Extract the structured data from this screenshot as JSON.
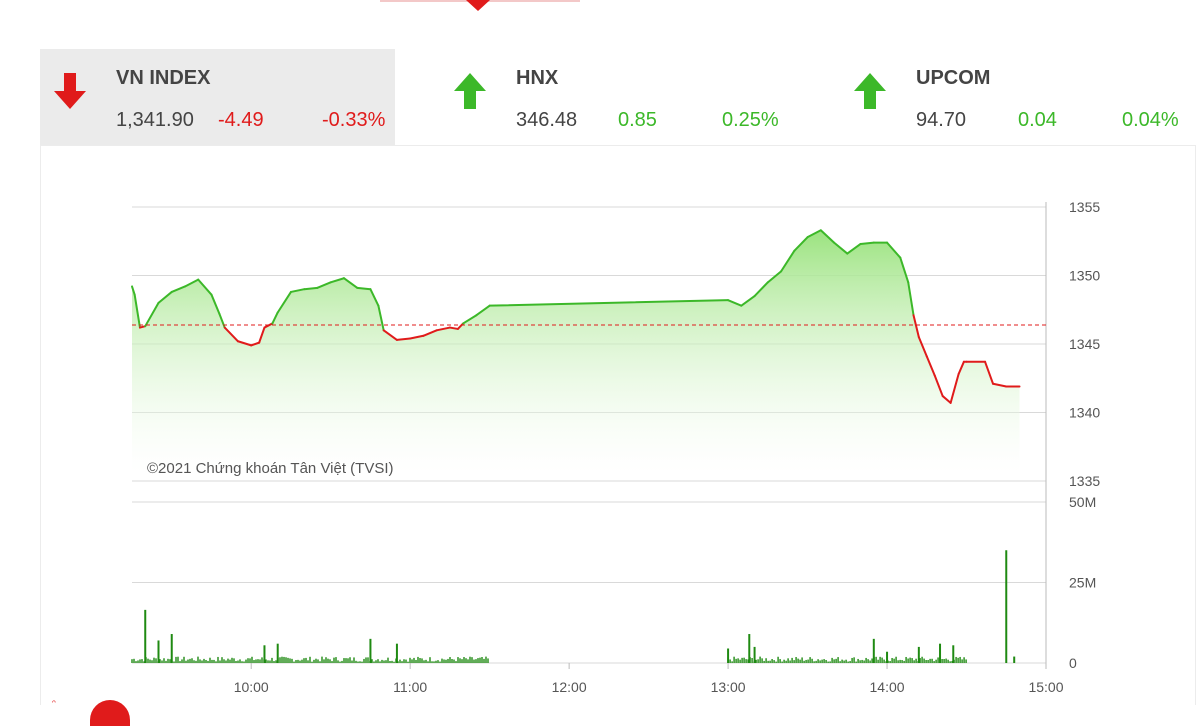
{
  "colors": {
    "up": "#3cb829",
    "down": "#e01b1b",
    "fill_top": "#9be37f",
    "fill_bottom": "#ffffff",
    "volume": "#1f8a12",
    "reference": "#e01b1b",
    "grid": "#d9d9d9"
  },
  "indices": [
    {
      "name": "VN INDEX",
      "value": "1,341.90",
      "change": "-4.49",
      "pct": "-0.33%",
      "direction": "down",
      "active": true
    },
    {
      "name": "HNX",
      "value": "346.48",
      "change": "0.85",
      "pct": "0.25%",
      "direction": "up",
      "active": false
    },
    {
      "name": "UPCOM",
      "value": "94.70",
      "change": "0.04",
      "pct": "0.04%",
      "direction": "up",
      "active": false
    }
  ],
  "chart_data": {
    "type": "line",
    "title": "",
    "watermark": "©2021 Chứng khoán Tân Việt (TVSI)",
    "reference": 1346.39,
    "ylim": [
      1335,
      1355
    ],
    "y_ticks": [
      1355,
      1350,
      1345,
      1340,
      1335
    ],
    "x_ticks": [
      "10:00",
      "11:00",
      "12:00",
      "13:00",
      "14:00",
      "15:00"
    ],
    "grid": true,
    "legend": "none",
    "price_series": {
      "name": "",
      "points": [
        [
          "09:15",
          1349.2
        ],
        [
          "09:16",
          1348.6
        ],
        [
          "09:18",
          1346.2
        ],
        [
          "09:20",
          1346.3
        ],
        [
          "09:25",
          1348.0
        ],
        [
          "09:30",
          1348.8
        ],
        [
          "09:35",
          1349.2
        ],
        [
          "09:40",
          1349.7
        ],
        [
          "09:45",
          1348.6
        ],
        [
          "09:48",
          1347.2
        ],
        [
          "09:50",
          1346.2
        ],
        [
          "09:55",
          1345.2
        ],
        [
          "10:00",
          1344.9
        ],
        [
          "10:03",
          1345.1
        ],
        [
          "10:05",
          1346.2
        ],
        [
          "10:08",
          1346.5
        ],
        [
          "10:10",
          1347.3
        ],
        [
          "10:15",
          1348.8
        ],
        [
          "10:20",
          1349.0
        ],
        [
          "10:25",
          1349.1
        ],
        [
          "10:30",
          1349.5
        ],
        [
          "10:35",
          1349.8
        ],
        [
          "10:40",
          1349.1
        ],
        [
          "10:45",
          1349.0
        ],
        [
          "10:48",
          1347.8
        ],
        [
          "10:50",
          1346.0
        ],
        [
          "10:55",
          1345.3
        ],
        [
          "11:00",
          1345.4
        ],
        [
          "11:05",
          1345.6
        ],
        [
          "11:10",
          1346.0
        ],
        [
          "11:15",
          1346.2
        ],
        [
          "11:18",
          1346.1
        ],
        [
          "11:20",
          1346.5
        ],
        [
          "11:25",
          1347.1
        ],
        [
          "11:30",
          1347.8
        ],
        [
          "13:00",
          1348.2
        ],
        [
          "13:05",
          1347.8
        ],
        [
          "13:10",
          1348.5
        ],
        [
          "13:15",
          1349.5
        ],
        [
          "13:20",
          1350.3
        ],
        [
          "13:25",
          1351.8
        ],
        [
          "13:30",
          1352.8
        ],
        [
          "13:35",
          1353.3
        ],
        [
          "13:40",
          1352.4
        ],
        [
          "13:45",
          1351.6
        ],
        [
          "13:50",
          1352.3
        ],
        [
          "13:55",
          1352.4
        ],
        [
          "14:00",
          1352.4
        ],
        [
          "14:05",
          1351.3
        ],
        [
          "14:08",
          1349.5
        ],
        [
          "14:10",
          1347.1
        ],
        [
          "14:12",
          1345.5
        ],
        [
          "14:15",
          1344.1
        ],
        [
          "14:18",
          1342.7
        ],
        [
          "14:21",
          1341.2
        ],
        [
          "14:24",
          1340.7
        ],
        [
          "14:27",
          1342.8
        ],
        [
          "14:29",
          1343.7
        ],
        [
          "14:30",
          1343.7
        ],
        [
          "14:37",
          1343.7
        ],
        [
          "14:40",
          1342.1
        ],
        [
          "14:45",
          1341.9
        ],
        [
          "14:50",
          1341.9
        ]
      ]
    },
    "volume_series": {
      "name": "",
      "ylim": [
        0,
        50
      ],
      "y_ticks_labels": [
        "50M",
        "25M",
        "0"
      ],
      "y_ticks_values": [
        50,
        25,
        0
      ],
      "spikes": [
        [
          "09:20",
          16.5
        ],
        [
          "09:25",
          7.0
        ],
        [
          "09:30",
          9.0
        ],
        [
          "10:05",
          5.5
        ],
        [
          "10:10",
          6.0
        ],
        [
          "10:45",
          7.5
        ],
        [
          "10:55",
          6.0
        ],
        [
          "13:00",
          4.5
        ],
        [
          "13:08",
          9.0
        ],
        [
          "13:10",
          5.0
        ],
        [
          "13:55",
          7.5
        ],
        [
          "14:00",
          3.5
        ],
        [
          "14:12",
          5.0
        ],
        [
          "14:20",
          6.0
        ],
        [
          "14:25",
          5.5
        ],
        [
          "14:45",
          35.0
        ],
        [
          "14:48",
          2.0
        ]
      ],
      "noise_segments": [
        [
          "09:15",
          "11:30"
        ],
        [
          "13:00",
          "14:30"
        ]
      ]
    }
  }
}
